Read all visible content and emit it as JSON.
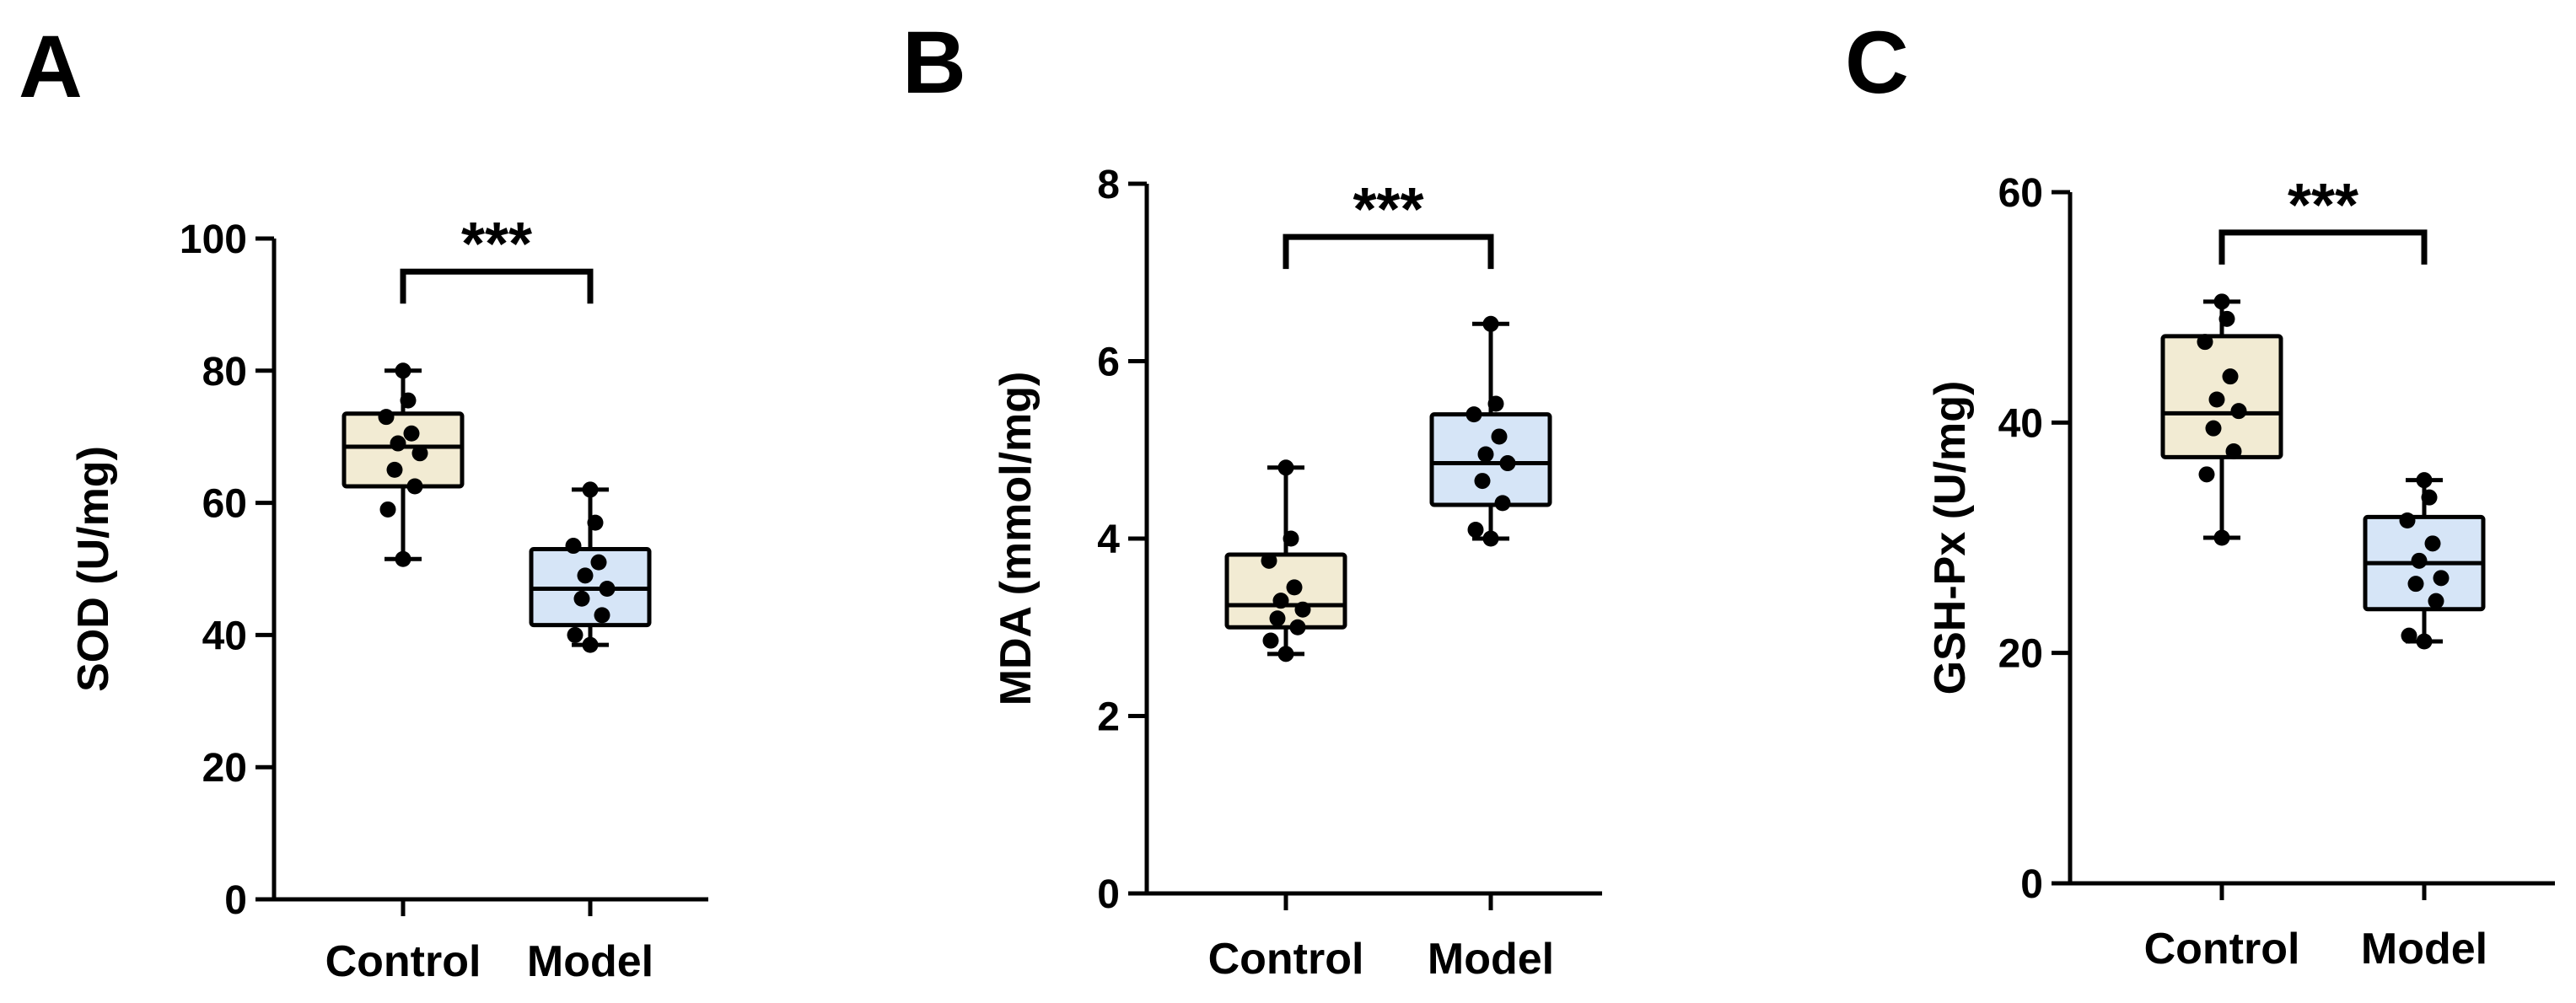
{
  "colors": {
    "control_fill": "#f2ebd3",
    "model_fill": "#d6e5f7",
    "ink": "#000000"
  },
  "chart_data": [
    {
      "type": "box",
      "panel_letter": "A",
      "ylabel": "SOD (U/mg)",
      "ylim": [
        0,
        100
      ],
      "yticks": [
        0,
        20,
        40,
        60,
        80,
        100
      ],
      "categories": [
        "Control",
        "Model"
      ],
      "boxes": [
        {
          "min": 51.5,
          "q1": 62.5,
          "median": 68.5,
          "q3": 73.5,
          "max": 80,
          "points": [
            51.5,
            59,
            62.5,
            65,
            67.5,
            69,
            70.5,
            73,
            75.5,
            80
          ]
        },
        {
          "min": 38.5,
          "q1": 41.5,
          "median": 47,
          "q3": 53,
          "max": 62,
          "points": [
            38.5,
            40,
            43,
            45.5,
            47,
            49,
            51,
            53.5,
            57,
            62
          ]
        }
      ],
      "significance": {
        "label": "***",
        "y": 95
      }
    },
    {
      "type": "box",
      "panel_letter": "B",
      "ylabel": "MDA (mmol/mg)",
      "ylim": [
        0,
        8
      ],
      "yticks": [
        0,
        2,
        4,
        6,
        8
      ],
      "categories": [
        "Control",
        "Model"
      ],
      "boxes": [
        {
          "min": 2.7,
          "q1": 3.0,
          "median": 3.25,
          "q3": 3.82,
          "max": 4.8,
          "points": [
            2.7,
            2.85,
            3.0,
            3.1,
            3.2,
            3.3,
            3.45,
            3.75,
            4.0,
            4.8
          ]
        },
        {
          "min": 4.0,
          "q1": 4.38,
          "median": 4.85,
          "q3": 5.4,
          "max": 6.42,
          "points": [
            4.0,
            4.1,
            4.4,
            4.65,
            4.85,
            4.95,
            5.15,
            5.4,
            5.52,
            6.42
          ]
        }
      ],
      "significance": {
        "label": "***",
        "y": 7.4
      }
    },
    {
      "type": "box",
      "panel_letter": "C",
      "ylabel": "GSH-Px (U/mg)",
      "ylim": [
        0,
        60
      ],
      "yticks": [
        0,
        20,
        40,
        60
      ],
      "categories": [
        "Control",
        "Model"
      ],
      "boxes": [
        {
          "min": 30,
          "q1": 37,
          "median": 40.8,
          "q3": 47.5,
          "max": 50.5,
          "points": [
            30,
            35.5,
            37.5,
            39.5,
            41,
            42,
            44,
            47,
            49,
            50.5
          ]
        },
        {
          "min": 21,
          "q1": 23.8,
          "median": 27.8,
          "q3": 31.8,
          "max": 35,
          "points": [
            21,
            21.5,
            24.5,
            26,
            26.5,
            28,
            29.5,
            31.5,
            33.5,
            35
          ]
        }
      ],
      "significance": {
        "label": "***",
        "y": 56.5
      }
    }
  ]
}
